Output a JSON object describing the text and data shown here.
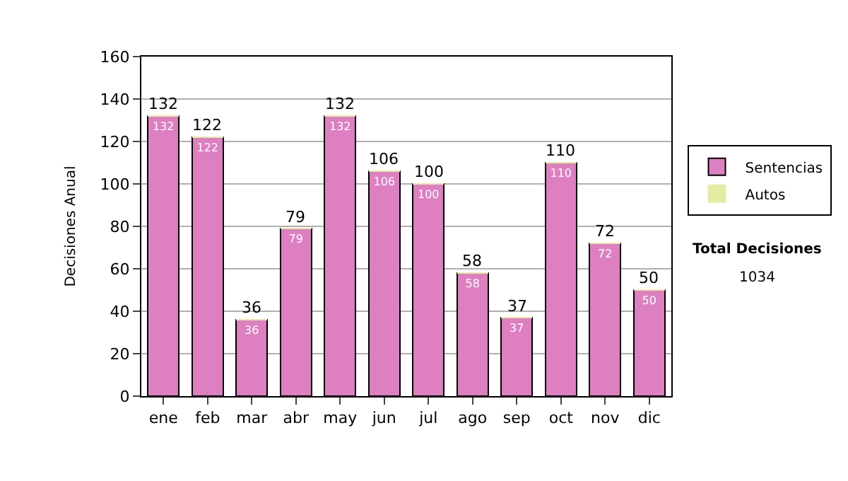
{
  "chart_data": {
    "type": "bar",
    "stacked": true,
    "ylabel": "Decisiones Anual",
    "categories": [
      "ene",
      "feb",
      "mar",
      "abr",
      "may",
      "jun",
      "jul",
      "ago",
      "sep",
      "oct",
      "nov",
      "dic"
    ],
    "series": [
      {
        "name": "Sentencias",
        "color": "#dd7fc0",
        "values": [
          132,
          122,
          36,
          79,
          132,
          106,
          100,
          58,
          37,
          110,
          72,
          50
        ],
        "value_labels": [
          "132",
          "122",
          "36",
          "79",
          "132",
          "106",
          "100",
          "58",
          "37",
          "110",
          "72",
          "50"
        ]
      },
      {
        "name": "Autos",
        "color": "#e4eca4",
        "values": [
          0,
          0,
          0,
          0,
          0,
          0,
          0,
          0,
          0,
          0,
          0,
          0
        ]
      }
    ],
    "totals": [
      "132",
      "122",
      "36",
      "79",
      "132",
      "106",
      "100",
      "58",
      "37",
      "110",
      "72",
      "50"
    ],
    "ylim": [
      0,
      160
    ],
    "yticks": [
      0,
      20,
      40,
      60,
      80,
      100,
      120,
      140,
      160
    ],
    "grid": "y",
    "legend": "right",
    "annotations": [
      "Total Decisiones",
      "1034"
    ]
  }
}
